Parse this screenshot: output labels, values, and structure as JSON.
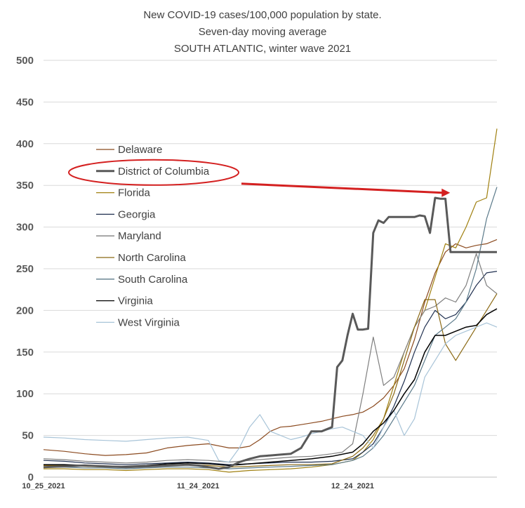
{
  "chart_data": {
    "type": "line",
    "title": [
      "New COVID-19 cases/100,000 population by state.",
      "Seven-day moving average",
      "SOUTH ATLANTIC, winter wave 2021"
    ],
    "xlabel": "",
    "ylabel": "",
    "ylim": [
      0,
      500
    ],
    "yticks": [
      0,
      50,
      100,
      150,
      200,
      250,
      300,
      350,
      400,
      450,
      500
    ],
    "xlim": [
      0,
      88
    ],
    "xticks": [
      {
        "x": 0,
        "label": "10_25_2021"
      },
      {
        "x": 30,
        "label": "11_24_2021"
      },
      {
        "x": 60,
        "label": "12_24_2021"
      }
    ],
    "grid": "horizontal",
    "legend_position": "left",
    "highlight": {
      "series": "District of Columbia",
      "shape": "ellipse",
      "arrow_to_x": 80,
      "arrow_to_y": 342,
      "color": "#d42020"
    },
    "series": [
      {
        "name": "Delaware",
        "color": "#8B4A1F",
        "width": 1.2,
        "x": [
          0,
          4,
          8,
          12,
          16,
          20,
          24,
          28,
          32,
          36,
          38,
          40,
          42,
          44,
          46,
          48,
          50,
          52,
          54,
          56,
          58,
          60,
          62,
          64,
          66,
          68,
          70,
          72,
          74,
          76,
          78,
          80,
          82,
          84,
          86,
          88
        ],
        "y": [
          33,
          31,
          28,
          26,
          27,
          29,
          35,
          38,
          40,
          35,
          35,
          37,
          45,
          55,
          60,
          61,
          63,
          65,
          67,
          70,
          73,
          75,
          78,
          85,
          95,
          110,
          130,
          165,
          210,
          245,
          270,
          280,
          275,
          278,
          280,
          285
        ]
      },
      {
        "name": "District of Columbia",
        "color": "#595959",
        "width": 3,
        "x": [
          0,
          4,
          8,
          12,
          16,
          20,
          24,
          28,
          30,
          32,
          34,
          36,
          38,
          40,
          42,
          44,
          46,
          48,
          50,
          52,
          54,
          56,
          57,
          58,
          59,
          60,
          61,
          62,
          63,
          64,
          65,
          66,
          67,
          68,
          69,
          70,
          71,
          72,
          73,
          74,
          75,
          76,
          77,
          78,
          79,
          80,
          81,
          82,
          83,
          84,
          85,
          86,
          87,
          88
        ],
        "y": [
          12,
          13,
          14,
          13,
          12,
          13,
          14,
          15,
          14,
          12,
          10,
          12,
          18,
          22,
          25,
          26,
          27,
          28,
          35,
          55,
          55,
          60,
          132,
          140,
          170,
          196,
          177,
          177,
          178,
          293,
          308,
          305,
          312,
          312,
          312,
          312,
          312,
          312,
          314,
          313,
          293,
          335,
          334,
          334,
          270,
          270,
          270,
          270,
          270,
          270,
          270,
          270,
          270,
          270
        ]
      },
      {
        "name": "Florida",
        "color": "#A08010",
        "width": 1.2,
        "x": [
          0,
          4,
          8,
          12,
          16,
          20,
          24,
          28,
          32,
          36,
          40,
          44,
          48,
          52,
          56,
          60,
          62,
          64,
          66,
          68,
          70,
          72,
          74,
          76,
          78,
          80,
          82,
          84,
          86,
          88
        ],
        "y": [
          10,
          10,
          9,
          9,
          8,
          9,
          10,
          10,
          9,
          6,
          8,
          9,
          10,
          12,
          15,
          20,
          30,
          45,
          70,
          110,
          150,
          180,
          200,
          240,
          280,
          275,
          300,
          330,
          335,
          418
        ]
      },
      {
        "name": "Georgia",
        "color": "#1F2F4F",
        "width": 1.2,
        "x": [
          0,
          4,
          8,
          12,
          16,
          20,
          24,
          28,
          32,
          36,
          40,
          44,
          48,
          52,
          56,
          60,
          62,
          64,
          66,
          68,
          70,
          72,
          74,
          76,
          78,
          80,
          82,
          84,
          86,
          88
        ],
        "y": [
          20,
          19,
          17,
          16,
          15,
          16,
          17,
          18,
          17,
          15,
          16,
          17,
          18,
          18,
          19,
          22,
          30,
          40,
          60,
          85,
          115,
          150,
          180,
          200,
          190,
          195,
          210,
          230,
          245,
          247
        ]
      },
      {
        "name": "Maryland",
        "color": "#7F7F7F",
        "width": 1.2,
        "x": [
          0,
          4,
          8,
          12,
          16,
          20,
          24,
          28,
          32,
          36,
          40,
          44,
          48,
          52,
          56,
          58,
          60,
          62,
          64,
          66,
          68,
          70,
          72,
          74,
          76,
          78,
          80,
          82,
          84,
          86,
          88
        ],
        "y": [
          22,
          21,
          19,
          18,
          17,
          18,
          20,
          21,
          20,
          18,
          20,
          22,
          24,
          25,
          28,
          30,
          40,
          100,
          168,
          110,
          120,
          150,
          180,
          200,
          205,
          215,
          210,
          230,
          268,
          230,
          220
        ]
      },
      {
        "name": "North Carolina",
        "color": "#8B6914",
        "width": 1.2,
        "x": [
          0,
          4,
          8,
          12,
          16,
          20,
          24,
          28,
          32,
          36,
          40,
          44,
          48,
          52,
          56,
          60,
          62,
          64,
          66,
          68,
          70,
          72,
          74,
          76,
          78,
          80,
          82,
          84,
          86,
          88
        ],
        "y": [
          14,
          14,
          13,
          12,
          12,
          13,
          14,
          15,
          14,
          12,
          13,
          14,
          15,
          15,
          16,
          25,
          35,
          50,
          70,
          100,
          140,
          180,
          213,
          213,
          160,
          140,
          160,
          180,
          200,
          220
        ]
      },
      {
        "name": "South Carolina",
        "color": "#5B7A8A",
        "width": 1.2,
        "x": [
          0,
          4,
          8,
          12,
          16,
          20,
          24,
          28,
          32,
          36,
          40,
          44,
          48,
          52,
          56,
          60,
          62,
          64,
          66,
          68,
          70,
          72,
          74,
          76,
          78,
          80,
          82,
          84,
          86,
          88
        ],
        "y": [
          12,
          12,
          11,
          11,
          10,
          11,
          12,
          12,
          11,
          10,
          11,
          12,
          13,
          14,
          15,
          20,
          25,
          35,
          50,
          70,
          90,
          110,
          140,
          170,
          180,
          190,
          210,
          250,
          310,
          348
        ]
      },
      {
        "name": "Virginia",
        "color": "#000000",
        "width": 1.5,
        "x": [
          0,
          4,
          8,
          12,
          16,
          20,
          24,
          28,
          32,
          36,
          40,
          44,
          48,
          52,
          56,
          60,
          62,
          64,
          66,
          68,
          70,
          72,
          74,
          76,
          78,
          80,
          82,
          84,
          86,
          88
        ],
        "y": [
          15,
          15,
          14,
          13,
          13,
          14,
          16,
          17,
          16,
          14,
          16,
          18,
          20,
          22,
          25,
          30,
          40,
          55,
          65,
          80,
          100,
          117,
          150,
          170,
          170,
          175,
          180,
          182,
          195,
          202
        ]
      },
      {
        "name": "West Virginia",
        "color": "#A8C4D8",
        "width": 1.2,
        "x": [
          0,
          4,
          8,
          12,
          16,
          20,
          24,
          28,
          32,
          34,
          36,
          38,
          40,
          42,
          44,
          46,
          48,
          50,
          52,
          54,
          56,
          58,
          60,
          62,
          64,
          66,
          68,
          70,
          72,
          74,
          76,
          78,
          80,
          82,
          84,
          86,
          88
        ],
        "y": [
          48,
          47,
          45,
          44,
          43,
          45,
          47,
          48,
          44,
          20,
          18,
          35,
          60,
          75,
          55,
          50,
          45,
          48,
          52,
          55,
          58,
          60,
          55,
          50,
          35,
          60,
          80,
          50,
          70,
          120,
          140,
          160,
          170,
          175,
          180,
          185,
          180
        ]
      }
    ]
  }
}
